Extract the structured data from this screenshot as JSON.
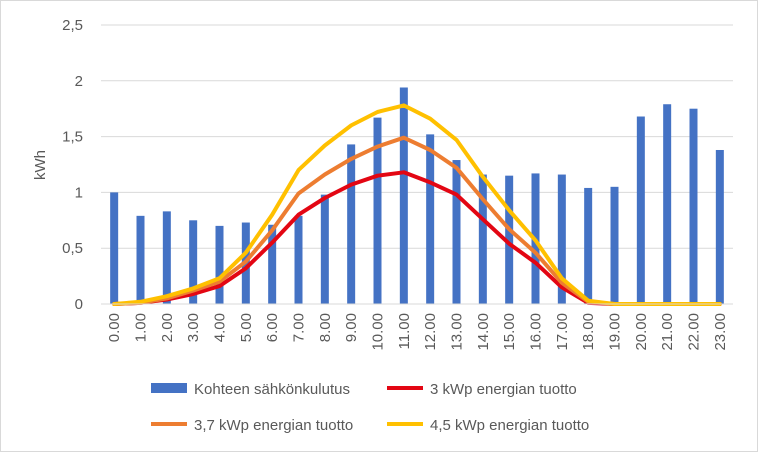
{
  "chart_data": {
    "type": "bar",
    "title": "",
    "xlabel": "",
    "ylabel": "kWh",
    "ylim": [
      0,
      2.5
    ],
    "yticks": [
      "0",
      "0,5",
      "1",
      "1,5",
      "2",
      "2,5"
    ],
    "ytick_values": [
      0,
      0.5,
      1,
      1.5,
      2,
      2.5
    ],
    "grid": true,
    "legend_position": "bottom",
    "categories": [
      "0.00",
      "1.00",
      "2.00",
      "3.00",
      "4.00",
      "5.00",
      "6.00",
      "7.00",
      "8.00",
      "9.00",
      "10.00",
      "11.00",
      "12.00",
      "13.00",
      "14.00",
      "15.00",
      "16.00",
      "17.00",
      "18.00",
      "19.00",
      "20.00",
      "21.00",
      "22.00",
      "23.00"
    ],
    "bar_series": {
      "name": "Kohteen sähkönkulutus",
      "color": "#4472c4",
      "values": [
        1.0,
        0.79,
        0.83,
        0.75,
        0.7,
        0.73,
        0.71,
        0.79,
        0.98,
        1.43,
        1.67,
        1.94,
        1.52,
        1.29,
        1.16,
        1.15,
        1.17,
        1.16,
        1.04,
        1.05,
        1.68,
        1.79,
        1.75,
        1.38
      ]
    },
    "line_series": [
      {
        "name": "3 kWp energian tuotto",
        "color": "#e30613",
        "values": [
          0.0,
          0.01,
          0.04,
          0.09,
          0.16,
          0.32,
          0.55,
          0.8,
          0.95,
          1.07,
          1.15,
          1.18,
          1.09,
          0.98,
          0.76,
          0.54,
          0.37,
          0.15,
          0.01,
          0.0,
          0.0,
          0.0,
          0.0,
          0.0
        ]
      },
      {
        "name": "3,7 kWp energian tuotto",
        "color": "#ed7d31",
        "values": [
          0.0,
          0.01,
          0.05,
          0.12,
          0.2,
          0.38,
          0.66,
          0.99,
          1.16,
          1.3,
          1.41,
          1.49,
          1.38,
          1.22,
          0.94,
          0.67,
          0.46,
          0.19,
          0.02,
          0.0,
          0.0,
          0.0,
          0.0,
          0.0
        ]
      },
      {
        "name": "4,5 kWp energian tuotto",
        "color": "#ffc000",
        "values": [
          0.0,
          0.02,
          0.07,
          0.14,
          0.23,
          0.46,
          0.8,
          1.2,
          1.42,
          1.6,
          1.72,
          1.78,
          1.66,
          1.47,
          1.14,
          0.84,
          0.57,
          0.23,
          0.03,
          0.0,
          0.0,
          0.0,
          0.0,
          0.0
        ]
      }
    ]
  }
}
